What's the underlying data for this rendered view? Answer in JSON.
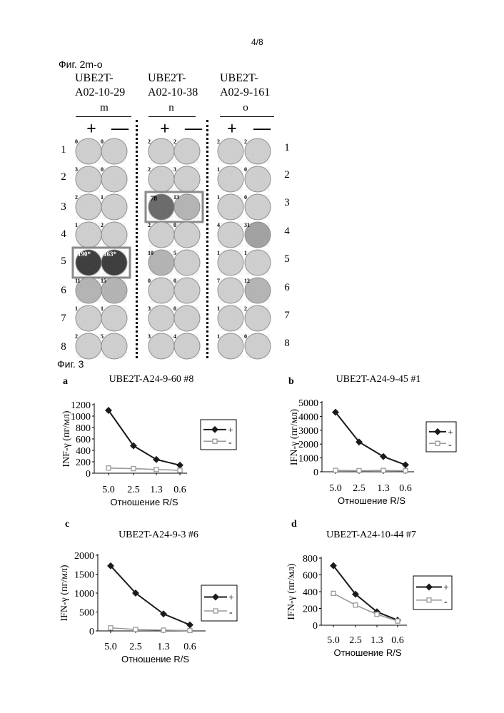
{
  "page_number": "4/8",
  "figure2": {
    "label": "Фиг. 2m-o",
    "columns": [
      {
        "name": "UBE2T-A02-10-29",
        "line1": "UBE2T-",
        "line2": "A02-10-29",
        "panel": "m",
        "plus": "+",
        "minus": "—"
      },
      {
        "name": "UBE2T-A02-10-38",
        "line1": "UBE2T-",
        "line2": "A02-10-38",
        "panel": "n",
        "plus": "+",
        "minus": "—"
      },
      {
        "name": "UBE2T-A02-9-161",
        "line1": "UBE2T-",
        "line2": "A02-9-161",
        "panel": "o",
        "plus": "+",
        "minus": "—"
      }
    ],
    "left_row_labels": [
      "1",
      "2",
      "3",
      "4",
      "5",
      "6",
      "7",
      "8"
    ],
    "right_row_labels": [
      "1",
      "2",
      "3",
      "4",
      "5",
      "6",
      "7",
      "8"
    ],
    "well_counts": [
      [
        [
          "0",
          "0"
        ],
        [
          "3",
          "0"
        ],
        [
          "2",
          "1"
        ],
        [
          "1",
          "2"
        ],
        [
          "190*",
          "163*"
        ],
        [
          "11",
          "15"
        ],
        [
          "1",
          "1"
        ],
        [
          "2",
          "5"
        ]
      ],
      [
        [
          "2",
          "2"
        ],
        [
          "2",
          "3"
        ],
        [
          "78",
          "13"
        ],
        [
          "2",
          "0"
        ],
        [
          "10",
          "5"
        ],
        [
          "0",
          "0"
        ],
        [
          "3",
          "0"
        ],
        [
          "3",
          "4"
        ]
      ],
      [
        [
          "2",
          "2"
        ],
        [
          "1",
          "0"
        ],
        [
          "1",
          "0"
        ],
        [
          "4",
          "31"
        ],
        [
          "1",
          "1"
        ],
        [
          "7",
          "12"
        ],
        [
          "1",
          "2"
        ],
        [
          "1",
          "0"
        ]
      ]
    ],
    "highlighted": [
      {
        "col": 0,
        "row": 4
      },
      {
        "col": 1,
        "row": 2
      }
    ],
    "colors": {
      "highlight_border": "#8a8a8a"
    }
  },
  "figure3": {
    "label": "Фиг. 3",
    "legend_plus": "+",
    "legend_minus": "-",
    "colors": {
      "plus": "#1a1a1a",
      "minus": "#9a9a9a"
    }
  },
  "chart_data": [
    {
      "type": "line",
      "panel": "a",
      "title": "UBE2T-A24-9-60 #8",
      "ylabel": "INF-γ (пг/мл)",
      "xlabel": "Отношение R/S",
      "categories": [
        "5.0",
        "2.5",
        "1.3",
        "0.6"
      ],
      "ylim": [
        0,
        1200
      ],
      "yticks": [
        0,
        200,
        400,
        600,
        800,
        1000,
        1200
      ],
      "series": [
        {
          "name": "+",
          "values": [
            1100,
            480,
            240,
            140
          ]
        },
        {
          "name": "-",
          "values": [
            90,
            80,
            65,
            50
          ]
        }
      ],
      "legend": "right"
    },
    {
      "type": "line",
      "panel": "b",
      "title": "UBE2T-A24-9-45 #1",
      "ylabel": "IFN-γ (пг/мл)",
      "xlabel": "Отношение R/S",
      "categories": [
        "5.0",
        "2.5",
        "1.3",
        "0.6"
      ],
      "ylim": [
        0,
        5000
      ],
      "yticks": [
        0,
        1000,
        2000,
        3000,
        4000,
        5000
      ],
      "series": [
        {
          "name": "+",
          "values": [
            4300,
            2150,
            1100,
            500
          ]
        },
        {
          "name": "-",
          "values": [
            100,
            80,
            100,
            70
          ]
        }
      ],
      "legend": "right"
    },
    {
      "type": "line",
      "panel": "c",
      "title": "UBE2T-A24-9-3 #6",
      "ylabel": "IFN-γ (пг/мл)",
      "xlabel": "Отношение R/S",
      "categories": [
        "5.0",
        "2.5",
        "1.3",
        "0.6"
      ],
      "ylim": [
        0,
        2000
      ],
      "yticks": [
        0,
        500,
        1000,
        1500,
        2000
      ],
      "series": [
        {
          "name": "+",
          "values": [
            1720,
            1000,
            450,
            160
          ]
        },
        {
          "name": "-",
          "values": [
            80,
            40,
            20,
            10
          ]
        }
      ],
      "legend": "right"
    },
    {
      "type": "line",
      "panel": "d",
      "title": "UBE2T-A24-10-44 #7",
      "ylabel": "IFN-γ (пг/мл)",
      "xlabel": "Отношение R/S",
      "categories": [
        "5.0",
        "2.5",
        "1.3",
        "0.6"
      ],
      "ylim": [
        0,
        800
      ],
      "yticks": [
        0,
        200,
        400,
        600,
        800
      ],
      "series": [
        {
          "name": "+",
          "values": [
            710,
            370,
            160,
            60
          ]
        },
        {
          "name": "-",
          "values": [
            380,
            240,
            130,
            50
          ]
        }
      ],
      "legend": "right"
    }
  ]
}
